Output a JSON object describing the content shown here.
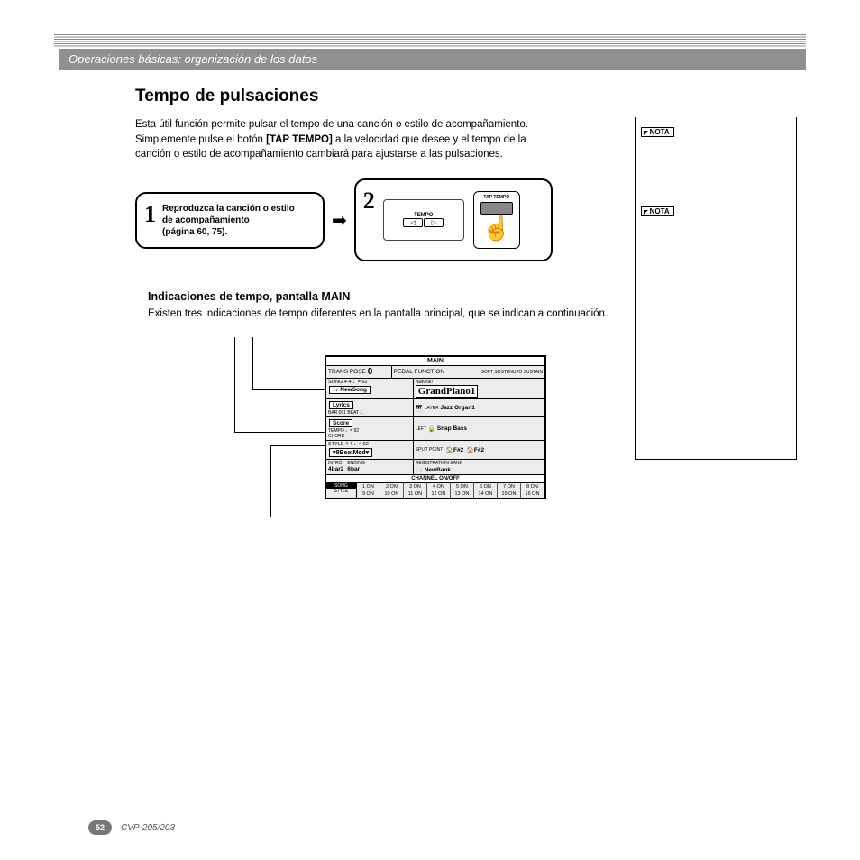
{
  "breadcrumb": "Operaciones básicas: organización de los datos",
  "title": "Tempo de pulsaciones",
  "intro": {
    "line1": "Esta útil función permite pulsar el tempo de una canción o estilo de acompañamiento.",
    "line2a": "Simplemente pulse el botón ",
    "line2b": "[TAP TEMPO]",
    "line2c": " a la velocidad que desee y el tempo de la",
    "line3": "canción o estilo de acompañamiento cambiará para ajustarse a las pulsaciones."
  },
  "step1": {
    "num": "1",
    "line1": "Reproduzca la canción o estilo",
    "line2": "de acompañamiento",
    "line3": "(página 60, 75)."
  },
  "step2": {
    "num": "2",
    "tempo_label": "TEMPO",
    "left_btn": "◁",
    "right_btn": "▷",
    "tap_label": "TAP TEMPO"
  },
  "sub": {
    "heading": "Indicaciones de tempo, pantalla MAIN",
    "text": "Existen tres indicaciones de tempo diferentes en la pantalla principal, que se indican a continuación."
  },
  "lcd": {
    "title": "MAIN",
    "trans_label": "TRANS\nPOSE",
    "trans_val": "0",
    "pedal_label": "PEDAL\nFUNCTION",
    "pedal_vals": "SOFT SOSTENUTO SUSTAIN",
    "song_bar": "SONG   4-4 ♩= 92",
    "natural_label": "Natural!",
    "newsong": "♪♪ NewSong",
    "main_voice": "GrandPiano1",
    "lyrics": "Lyrics",
    "bar_beat": "BAR  001\nBEAT 1",
    "layer_label": "LAYER",
    "layer_voice": "Jazz Organ1",
    "tempo_label": "TEMPO ♩= 92",
    "score": "Score",
    "chord": "CHORD",
    "left_label": "LEFT",
    "left_voice": "Snap Bass",
    "style_bar": "STYLE  4-4 ♩= 92",
    "split_label": "SPLIT\nPOINT",
    "split1": "F#2",
    "split2": "F#2",
    "style_name": "8BeatMed",
    "intro_label": "INTRO",
    "intro_val": "4bar2",
    "ending_label": "ENDING",
    "ending_val": "6bar",
    "reg_label": "REGISTRATION BANK",
    "reg_val": "NewBank",
    "channel_title": "CHANNEL ON/OFF",
    "ch_labels_top": [
      "SONG",
      "STYLE"
    ],
    "channels": [
      "1 ON",
      "2 ON",
      "3 ON",
      "4 ON",
      "5 ON",
      "6 ON",
      "7 ON",
      "8 ON"
    ],
    "channels2": [
      "9 ON",
      "10 ON",
      "11 ON",
      "12 ON",
      "13 ON",
      "14 ON",
      "15 ON",
      "16 ON"
    ]
  },
  "nota_label": "NOTA",
  "footer": {
    "page": "52",
    "model": "CVP-205/203"
  }
}
